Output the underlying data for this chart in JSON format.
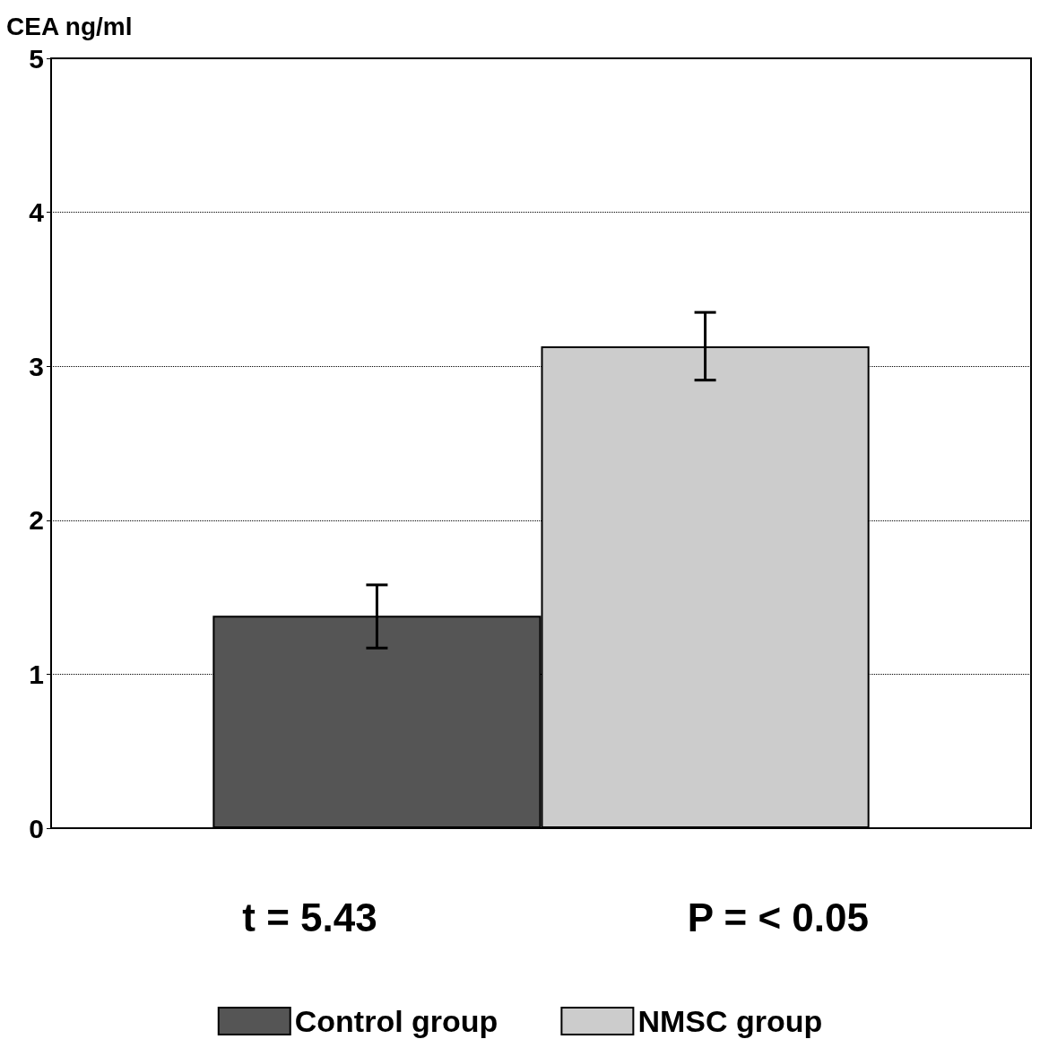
{
  "chart_data": {
    "type": "bar",
    "ylabel": "CEA ng/ml",
    "categories": [
      null
    ],
    "series": [
      {
        "name": "Control group",
        "color": "#555555",
        "values": [
          1.38
        ],
        "errors": [
          [
            1.17,
            1.58
          ]
        ]
      },
      {
        "name": "NMSC group",
        "color": "#cccccc",
        "values": [
          3.13
        ],
        "errors": [
          [
            2.91,
            3.35
          ]
        ]
      }
    ],
    "ylim": [
      0,
      5
    ],
    "yticks": [
      0,
      1,
      2,
      3,
      4,
      5
    ],
    "grid": "y",
    "legend": "bottom",
    "annotations": [
      "t = 5.43",
      "P = < 0.05"
    ]
  }
}
